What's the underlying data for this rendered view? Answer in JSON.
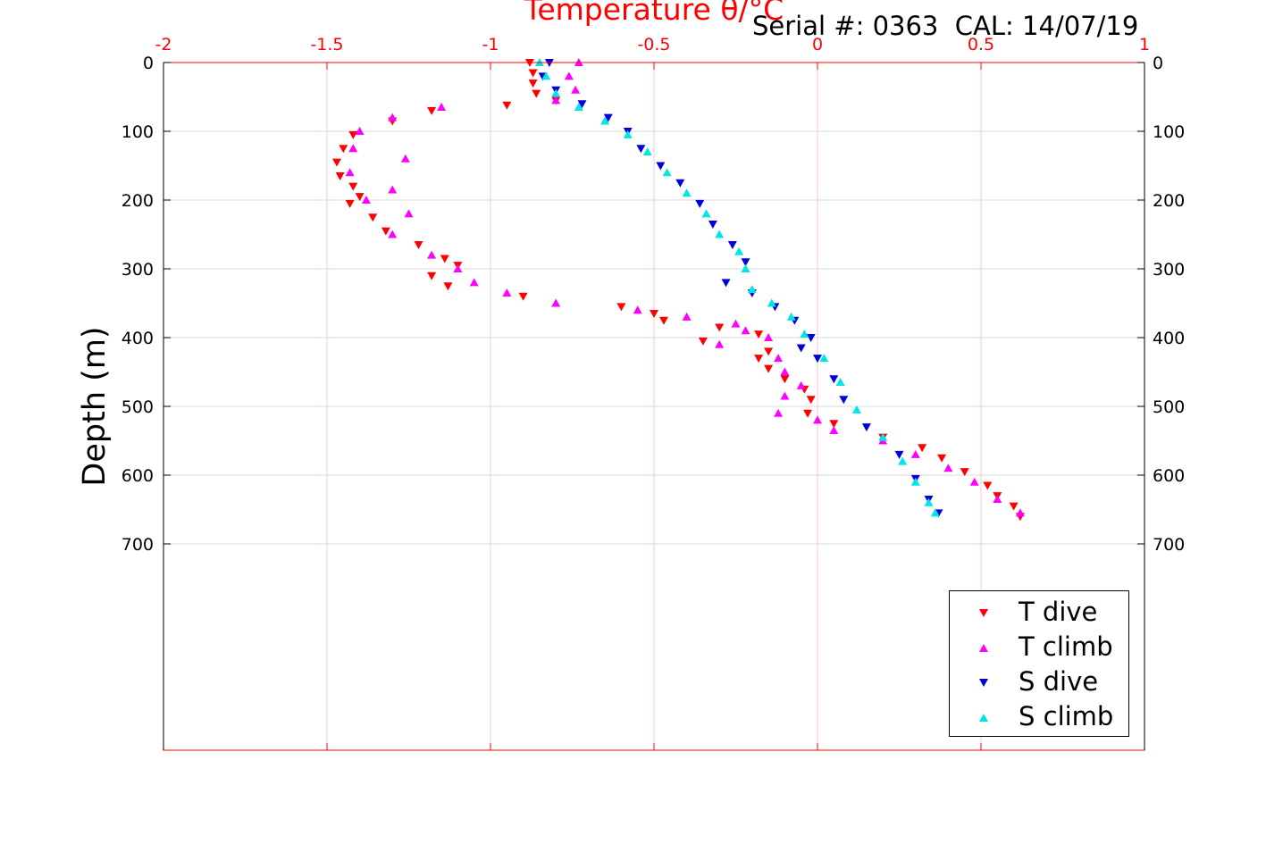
{
  "serial_text": "Serial #: 0363  CAL: 14/07/19",
  "colors": {
    "axis_top": "#ff0000",
    "axis_left": "#000000",
    "grid": "#d9d9d9",
    "t_dive": "#ff0000",
    "t_climb": "#ff00ff",
    "s_dive": "#0000dd",
    "s_climb": "#00e5e5"
  },
  "chart_data": {
    "type": "scatter",
    "title": "Temperature θ/°C",
    "ylabel": "Depth (m)",
    "xlim": [
      -2,
      1
    ],
    "ylim": [
      0,
      1000
    ],
    "y_reversed": true,
    "x_ticks": [
      "-2",
      "-1.5",
      "-1",
      "-0.5",
      "0",
      "0.5",
      "1"
    ],
    "y_ticks": [
      "0",
      "100",
      "200",
      "300",
      "400",
      "500",
      "600",
      "700"
    ],
    "grid": true,
    "legend_position": "bottom-right",
    "series": [
      {
        "name": "T dive",
        "marker": "triangle-down",
        "color": "#ff0000",
        "x": [
          -0.88,
          -0.87,
          -0.87,
          -0.86,
          -0.8,
          -0.95,
          -1.18,
          -1.3,
          -1.42,
          -1.45,
          -1.47,
          -1.46,
          -1.42,
          -1.4,
          -1.43,
          -1.36,
          -1.32,
          -1.22,
          -1.14,
          -1.1,
          -1.18,
          -1.13,
          -0.9,
          -0.6,
          -0.5,
          -0.47,
          -0.3,
          -0.18,
          -0.15,
          -0.35,
          -0.18,
          -0.15,
          -0.1,
          -0.04,
          -0.02,
          -0.03,
          0.05,
          0.2,
          0.32,
          0.38,
          0.45,
          0.52,
          0.55,
          0.6,
          0.62
        ],
        "y": [
          0,
          15,
          30,
          45,
          55,
          62,
          70,
          85,
          105,
          125,
          145,
          165,
          180,
          195,
          205,
          225,
          245,
          265,
          285,
          295,
          310,
          325,
          340,
          355,
          365,
          375,
          385,
          395,
          420,
          405,
          430,
          445,
          460,
          475,
          490,
          510,
          525,
          545,
          560,
          575,
          595,
          615,
          630,
          645,
          660
        ]
      },
      {
        "name": "T climb",
        "marker": "triangle-up",
        "color": "#ff00ff",
        "x": [
          -0.73,
          -0.76,
          -0.74,
          -0.8,
          -1.15,
          -1.3,
          -1.4,
          -1.42,
          -1.26,
          -1.43,
          -1.3,
          -1.38,
          -1.25,
          -1.3,
          -1.18,
          -1.1,
          -1.05,
          -0.95,
          -0.8,
          -0.55,
          -0.4,
          -0.25,
          -0.22,
          -0.15,
          -0.3,
          -0.12,
          -0.1,
          -0.05,
          -0.1,
          -0.12,
          0.0,
          0.05,
          0.2,
          0.3,
          0.4,
          0.48,
          0.55,
          0.62
        ],
        "y": [
          0,
          20,
          40,
          55,
          65,
          80,
          100,
          125,
          140,
          160,
          185,
          200,
          220,
          250,
          280,
          300,
          320,
          335,
          350,
          360,
          370,
          380,
          390,
          400,
          410,
          430,
          450,
          470,
          485,
          510,
          520,
          535,
          550,
          570,
          590,
          610,
          635,
          655
        ]
      },
      {
        "name": "S dive",
        "marker": "triangle-down",
        "color": "#0000dd",
        "x": [
          -0.82,
          -0.84,
          -0.8,
          -0.72,
          -0.64,
          -0.58,
          -0.54,
          -0.48,
          -0.42,
          -0.36,
          -0.32,
          -0.26,
          -0.22,
          -0.28,
          -0.2,
          -0.13,
          -0.07,
          -0.02,
          -0.05,
          0.0,
          0.05,
          0.08,
          0.15,
          0.25,
          0.3,
          0.34,
          0.37
        ],
        "y": [
          0,
          20,
          40,
          60,
          80,
          100,
          125,
          150,
          175,
          205,
          235,
          265,
          290,
          320,
          335,
          355,
          375,
          400,
          415,
          430,
          460,
          490,
          530,
          570,
          605,
          635,
          655
        ]
      },
      {
        "name": "S climb",
        "marker": "triangle-up",
        "color": "#00e5e5",
        "x": [
          -0.85,
          -0.83,
          -0.8,
          -0.73,
          -0.65,
          -0.58,
          -0.52,
          -0.46,
          -0.4,
          -0.34,
          -0.3,
          -0.24,
          -0.22,
          -0.2,
          -0.14,
          -0.08,
          -0.04,
          0.02,
          0.07,
          0.12,
          0.2,
          0.26,
          0.3,
          0.34,
          0.36
        ],
        "y": [
          0,
          20,
          45,
          65,
          85,
          105,
          130,
          160,
          190,
          220,
          250,
          275,
          300,
          330,
          350,
          370,
          395,
          430,
          465,
          505,
          545,
          580,
          610,
          640,
          655
        ]
      }
    ]
  }
}
